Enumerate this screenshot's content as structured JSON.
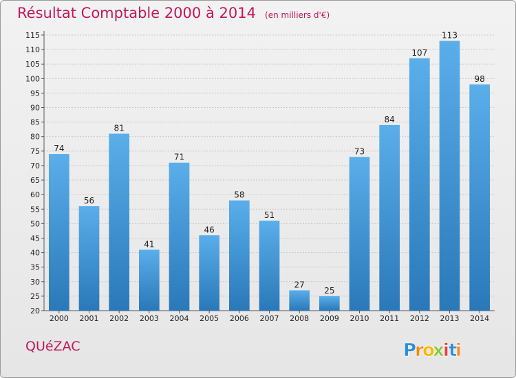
{
  "chart_data": {
    "type": "bar",
    "title": "Résultat Comptable 2000 à 2014",
    "subtitle": "(en milliers d'€)",
    "categories": [
      "2000",
      "2001",
      "2002",
      "2003",
      "2004",
      "2005",
      "2006",
      "2007",
      "2008",
      "2009",
      "2010",
      "2011",
      "2012",
      "2013",
      "2014"
    ],
    "values": [
      74,
      56,
      81,
      41,
      71,
      46,
      58,
      51,
      27,
      25,
      73,
      84,
      107,
      113,
      98
    ],
    "ylim": [
      20,
      115
    ],
    "ytick_step": 5,
    "xlabel": "",
    "ylabel": "",
    "grid": true,
    "bar_color": "#3d8fd6"
  },
  "place_name": "QUéZAC",
  "logo": {
    "text": "Proxiti",
    "letters": [
      "P",
      "r",
      "o",
      "x",
      "i",
      "t",
      "i"
    ],
    "colors": [
      "#2a8fd8",
      "#f08a1c",
      "#f5b800",
      "#8cc63f",
      "#e8423f",
      "#2a8fd8",
      "#f08a1c"
    ]
  }
}
